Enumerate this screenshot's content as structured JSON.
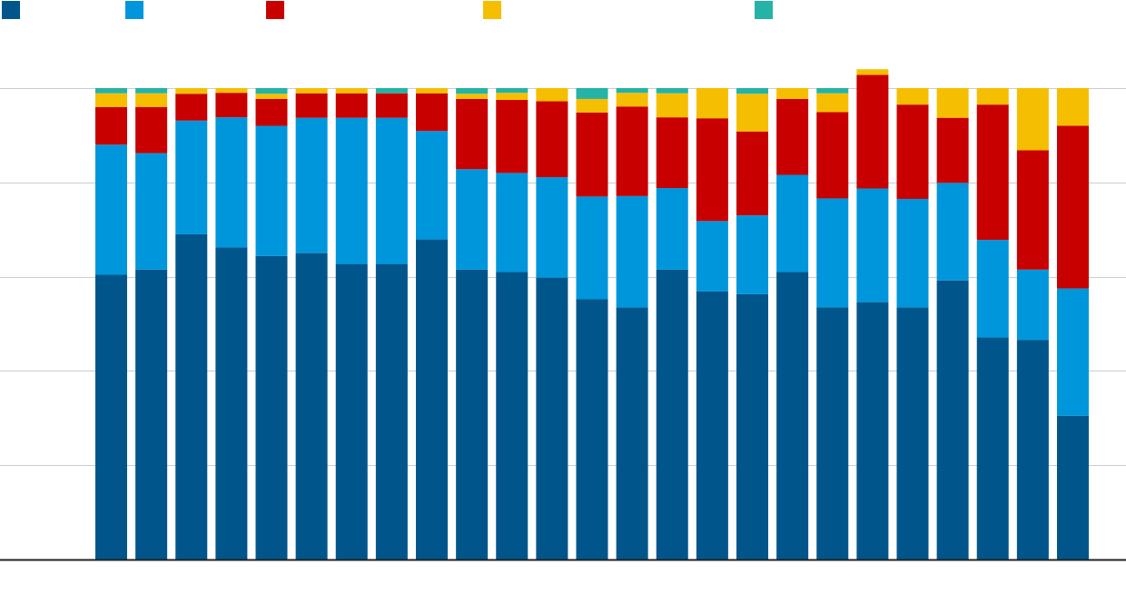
{
  "chart_data": {
    "type": "bar",
    "stacked": true,
    "normalized": true,
    "title": "",
    "xlabel": "",
    "ylabel": "",
    "ylim": [
      0,
      100
    ],
    "grid": true,
    "legend_position": "top",
    "categories": [
      "",
      "",
      "",
      "",
      "",
      "",
      "",
      "",
      "",
      "",
      "",
      "",
      "",
      "",
      "",
      "",
      "",
      "",
      "",
      "",
      "",
      "",
      "",
      "",
      ""
    ],
    "series": [
      {
        "color": "#00568b",
        "values": [
          60.4,
          61.5,
          69.0,
          66.2,
          64.4,
          65.0,
          62.7,
          62.7,
          67.9,
          61.5,
          61.0,
          59.8,
          55.2,
          53.5,
          61.5,
          56.9,
          56.3,
          61.0,
          53.5,
          54.6,
          53.5,
          59.2,
          47.1,
          46.6,
          30.5
        ]
      },
      {
        "color": "#0096db",
        "values": [
          27.6,
          24.7,
          24.1,
          27.6,
          27.6,
          28.7,
          31.0,
          31.0,
          23.0,
          21.3,
          21.0,
          21.3,
          21.8,
          23.6,
          17.3,
          14.9,
          16.7,
          20.6,
          23.1,
          24.1,
          23.0,
          20.7,
          20.7,
          14.9,
          27.0
        ]
      },
      {
        "color": "#c80000",
        "values": [
          8.0,
          9.8,
          5.7,
          5.2,
          5.7,
          5.2,
          5.2,
          5.2,
          8.0,
          14.9,
          15.5,
          16.1,
          17.8,
          19.0,
          15.0,
          21.8,
          17.8,
          16.1,
          18.3,
          24.1,
          20.0,
          13.8,
          28.7,
          25.3,
          34.5
        ]
      },
      {
        "color": "#f5be00",
        "values": [
          2.9,
          2.9,
          1.2,
          1.0,
          1.1,
          1.1,
          1.1,
          0,
          1.1,
          1.1,
          1.5,
          2.8,
          2.9,
          2.9,
          5.1,
          6.4,
          8.0,
          2.3,
          4.0,
          1.2,
          3.5,
          6.3,
          3.5,
          13.2,
          8.0
        ]
      },
      {
        "color": "#24b3a6",
        "values": [
          1.1,
          1.1,
          0,
          0,
          1.2,
          0,
          0,
          1.1,
          0,
          1.2,
          1.0,
          0,
          2.3,
          1.0,
          1.1,
          0,
          1.2,
          0,
          1.1,
          0,
          0,
          0,
          0,
          0,
          0
        ]
      }
    ]
  }
}
